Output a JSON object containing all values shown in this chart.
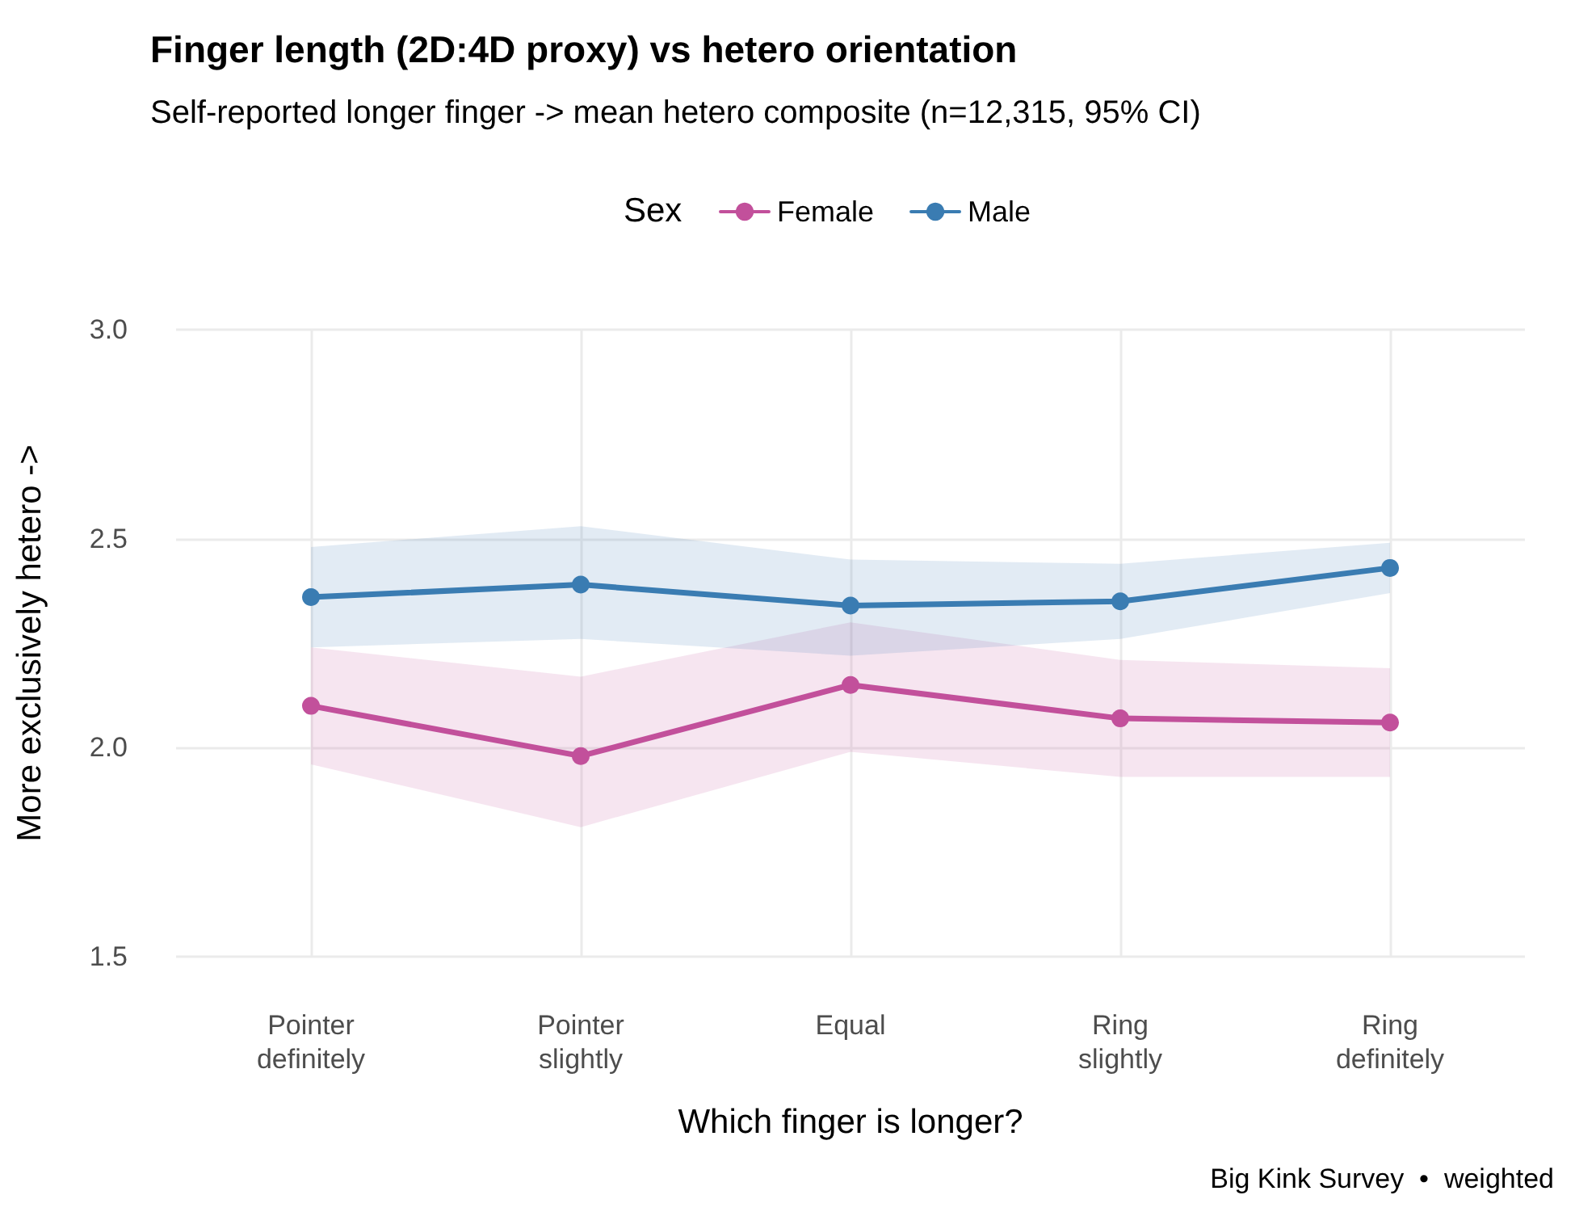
{
  "chart_data": {
    "type": "line",
    "title": "Finger length (2D:4D proxy) vs hetero orientation",
    "subtitle": "Self-reported longer finger -> mean hetero composite (n=12,315, 95% CI)",
    "xlabel": "Which finger is longer?",
    "ylabel": "More exclusively hetero ->",
    "legend_title": "Sex",
    "categories": [
      "Pointer\ndefinitely",
      "Pointer\nslightly",
      "Equal",
      "Ring\nslightly",
      "Ring\ndefinitely"
    ],
    "series": [
      {
        "name": "Female",
        "color": "#c2509b",
        "values": [
          2.1,
          1.98,
          2.15,
          2.07,
          2.06
        ],
        "lower": [
          1.96,
          1.81,
          1.99,
          1.93,
          1.93
        ],
        "upper": [
          2.24,
          2.17,
          2.3,
          2.21,
          2.19
        ]
      },
      {
        "name": "Male",
        "color": "#3a7cb2",
        "values": [
          2.36,
          2.39,
          2.34,
          2.35,
          2.43
        ],
        "lower": [
          2.24,
          2.26,
          2.22,
          2.26,
          2.37
        ],
        "upper": [
          2.48,
          2.53,
          2.45,
          2.44,
          2.49
        ]
      }
    ],
    "ylim": [
      1.5,
      3
    ],
    "yticks": [
      1.5,
      {
        "value": 2,
        "label": "2.0"
      },
      2.5,
      {
        "value": 3,
        "label": "3.0"
      }
    ],
    "grid": true,
    "legend": "top",
    "marker": "circle",
    "line_style": "solid",
    "annotations": [
      "Big Kink Survey  •  weighted"
    ]
  }
}
